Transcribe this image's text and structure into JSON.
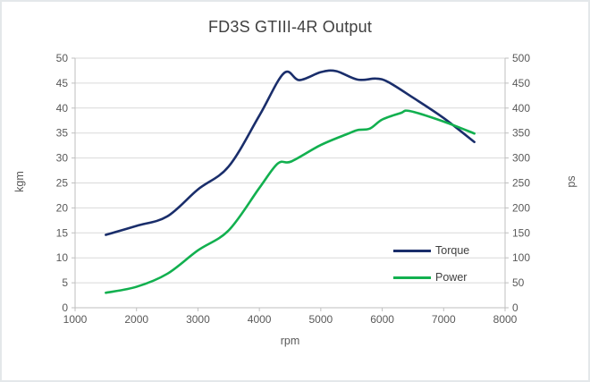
{
  "colors": {
    "torque": "#1a2e6b",
    "power": "#12b04f",
    "grid": "#d9d9d9",
    "axis": "#bfbfbf",
    "tick_text": "#595959",
    "title_text": "#404040"
  },
  "chart_data": {
    "type": "line",
    "title": "FD3S GTIII-4R Output",
    "xlabel": "rpm",
    "x_min": 1000,
    "x_max": 8000,
    "x_ticks": [
      1000,
      2000,
      3000,
      4000,
      5000,
      6000,
      7000,
      8000
    ],
    "left_axis": {
      "label": "kgm",
      "min": 0,
      "max": 50,
      "ticks": [
        0,
        5,
        10,
        15,
        20,
        25,
        30,
        35,
        40,
        45,
        50
      ]
    },
    "right_axis": {
      "label": "ps",
      "min": 0,
      "max": 500,
      "ticks": [
        0,
        50,
        100,
        150,
        200,
        250,
        300,
        350,
        400,
        450,
        500
      ]
    },
    "grid": true,
    "legend_position": "inside-right",
    "series": [
      {
        "name": "Torque",
        "axis": "left",
        "unit": "kgm",
        "color_key": "torque",
        "points": [
          [
            1500,
            14.6
          ],
          [
            2000,
            16.4
          ],
          [
            2500,
            18.3
          ],
          [
            3000,
            23.7
          ],
          [
            3500,
            28.3
          ],
          [
            4000,
            38.5
          ],
          [
            4400,
            47.0
          ],
          [
            4650,
            45.6
          ],
          [
            5000,
            47.2
          ],
          [
            5250,
            47.4
          ],
          [
            5600,
            45.7
          ],
          [
            5900,
            45.9
          ],
          [
            6100,
            45.2
          ],
          [
            6500,
            42.1
          ],
          [
            7000,
            38.0
          ],
          [
            7500,
            33.2
          ]
        ]
      },
      {
        "name": "Power",
        "axis": "right",
        "unit": "ps",
        "color_key": "power",
        "points": [
          [
            1500,
            30
          ],
          [
            2000,
            42
          ],
          [
            2500,
            68
          ],
          [
            3000,
            115
          ],
          [
            3500,
            155
          ],
          [
            4000,
            240
          ],
          [
            4300,
            289
          ],
          [
            4520,
            293
          ],
          [
            5000,
            326
          ],
          [
            5450,
            349
          ],
          [
            5600,
            356
          ],
          [
            5800,
            359
          ],
          [
            6000,
            377
          ],
          [
            6300,
            390
          ],
          [
            6450,
            394
          ],
          [
            7000,
            373
          ],
          [
            7500,
            349
          ]
        ]
      }
    ]
  }
}
